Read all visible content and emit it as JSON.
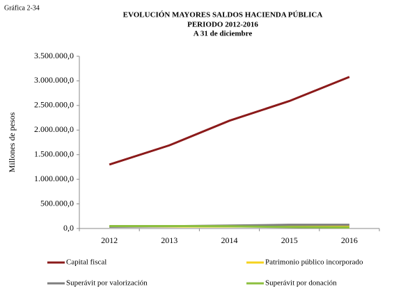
{
  "chart_data": {
    "type": "line",
    "figure_label": "Gráfica 2-34",
    "title": "EVOLUCIÓN  MAYORES  SALDOS  HACIENDA  PÚBLICA",
    "subtitle": [
      "PERIODO  2012-2016",
      "A 31 de diciembre"
    ],
    "y_label": "Millones de pesos",
    "categories": [
      "2012",
      "2013",
      "2014",
      "2015",
      "2016"
    ],
    "series": [
      {
        "name": "Capital fiscal",
        "color": "#8b1a1a",
        "values": [
          1300000,
          1690000,
          2190000,
          2590000,
          3080000
        ]
      },
      {
        "name": "Patrimonio público incorporado",
        "color": "#f5d21e",
        "values": [
          40000,
          40000,
          40000,
          40000,
          40000
        ]
      },
      {
        "name": "Superávit por valorización",
        "color": "#7f7f7f",
        "values": [
          35000,
          45000,
          60000,
          75000,
          75000
        ]
      },
      {
        "name": "Superávit por donación",
        "color": "#8cbf3f",
        "values": [
          50000,
          50000,
          45000,
          30000,
          20000
        ]
      }
    ],
    "ylim": [
      0,
      3500000
    ],
    "yticks": [
      {
        "value": 0,
        "label": "0,0"
      },
      {
        "value": 500000,
        "label": "500.000,0"
      },
      {
        "value": 1000000,
        "label": "1.000.000,0"
      },
      {
        "value": 1500000,
        "label": "1.500.000,0"
      },
      {
        "value": 2000000,
        "label": "2.000.000,0"
      },
      {
        "value": 2500000,
        "label": "2.500.000,0"
      },
      {
        "value": 3000000,
        "label": "3.000.000,0"
      },
      {
        "value": 3500000,
        "label": "3.500.000,0"
      }
    ],
    "grid": false
  }
}
